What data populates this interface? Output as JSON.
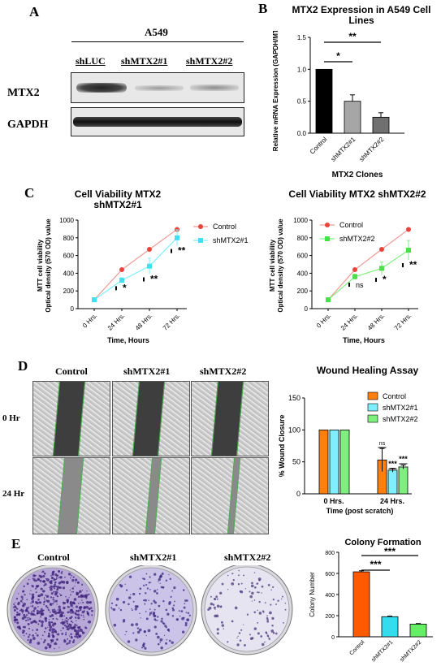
{
  "panelA": {
    "letter": "A",
    "cell_line": "A549",
    "lanes": [
      "shLUC",
      "shMTX2#1",
      "shMTX2#2"
    ],
    "rows": [
      "MTX2",
      "GAPDH"
    ]
  },
  "panelB": {
    "letter": "B"
  },
  "panelC": {
    "letter": "C"
  },
  "panelD": {
    "letter": "D",
    "columns": [
      "Control",
      "shMTX2#1",
      "shMTX2#2"
    ],
    "rows": [
      "0 Hr",
      "24 Hr"
    ]
  },
  "panelE": {
    "letter": "E",
    "columns": [
      "Control",
      "shMTX2#1",
      "shMTX2#2"
    ]
  },
  "colors": {
    "black": "#000000",
    "gray": "#a6a6a6",
    "dark_gray": "#707070",
    "red": "#e8443a",
    "cyan": "#3fe0f0",
    "green": "#46e04a",
    "orange": "#ff7f0e",
    "light_cyan": "#7fefff",
    "light_green": "#7ff07f",
    "colony_orange": "#ff5a00",
    "colony_cyan": "#33ddee",
    "colony_green": "#66ee66"
  },
  "chart_data": [
    {
      "id": "mtx2-expression",
      "type": "bar",
      "title": "MTX2 Expression in A549 Cell Lines",
      "xlabel": "MTX2 Clones",
      "ylabel": "Relative mRNA Expression (GAPDH/MTX2)",
      "categories": [
        "Control",
        "shMTX2#1",
        "shMTX2#2"
      ],
      "values": [
        1.0,
        0.5,
        0.25
      ],
      "errors": [
        0.0,
        0.1,
        0.07
      ],
      "ylim": [
        0,
        1.5
      ],
      "yticks": [
        "0.0",
        "0.5",
        "1.0",
        "1.5"
      ],
      "significance": [
        "*",
        "**"
      ]
    },
    {
      "id": "viability-1",
      "type": "line",
      "title": "Cell Viability MTX2 shMTX2#1",
      "xlabel": "Time, Hours",
      "ylabel": "MTT cell viability Optical density (570 OD) value",
      "categories": [
        "0 Hrs.",
        "24 Hrs.",
        "48 Hrs.",
        "72 Hrs."
      ],
      "ylim": [
        0,
        1000
      ],
      "yticks": [
        "0",
        "200",
        "400",
        "600",
        "800",
        "1000"
      ],
      "series": [
        {
          "name": "Control",
          "values": [
            100,
            440,
            670,
            895
          ]
        },
        {
          "name": "shMTX2#1",
          "values": [
            100,
            320,
            480,
            800
          ],
          "errors": [
            0,
            30,
            90,
            90
          ]
        }
      ],
      "significance": [
        "*",
        "**",
        "**"
      ],
      "legend": "top-right"
    },
    {
      "id": "viability-2",
      "type": "line",
      "title": "Cell Viability MTX2 shMTX2#2",
      "xlabel": "Time, Hours",
      "ylabel": "MTT cell viability Optical density (570 OD) value",
      "categories": [
        "0 Hrs.",
        "24 Hrs.",
        "48 Hrs.",
        "72 Hrs."
      ],
      "ylim": [
        0,
        1000
      ],
      "yticks": [
        "0",
        "200",
        "400",
        "600",
        "800",
        "1000"
      ],
      "series": [
        {
          "name": "Control",
          "values": [
            100,
            440,
            670,
            895
          ]
        },
        {
          "name": "shMTX2#2",
          "values": [
            100,
            360,
            455,
            660
          ],
          "errors": [
            0,
            30,
            70,
            110
          ]
        }
      ],
      "significance": [
        "ns",
        "*",
        "**"
      ],
      "legend": "top-left"
    },
    {
      "id": "wound-healing",
      "type": "bar",
      "title": "Wound Healing Assay",
      "xlabel": "Time (post scratch)",
      "ylabel": "% Wound Closure",
      "categories": [
        "0 Hrs.",
        "24 Hrs."
      ],
      "ylim": [
        0,
        150
      ],
      "yticks": [
        "0",
        "50",
        "100",
        "150"
      ],
      "series": [
        {
          "name": "Control",
          "values": [
            100,
            53
          ],
          "errors": [
            0,
            18
          ]
        },
        {
          "name": "shMTX2#1",
          "values": [
            100,
            37
          ],
          "errors": [
            0,
            3
          ]
        },
        {
          "name": "shMTX2#2",
          "values": [
            100,
            42
          ],
          "errors": [
            0,
            3
          ]
        }
      ],
      "significance": [
        "ns",
        "***",
        "***"
      ],
      "legend": "top-right"
    },
    {
      "id": "colony-formation",
      "type": "bar",
      "title": "Colony Formation",
      "xlabel": "",
      "ylabel": "Colony Number",
      "categories": [
        "Control",
        "shMTX2#1",
        "shMTX2#2"
      ],
      "values": [
        615,
        190,
        120
      ],
      "errors": [
        10,
        5,
        5
      ],
      "ylim": [
        0,
        800
      ],
      "yticks": [
        "0",
        "200",
        "400",
        "600",
        "800"
      ],
      "significance": [
        "***",
        "***"
      ]
    }
  ]
}
